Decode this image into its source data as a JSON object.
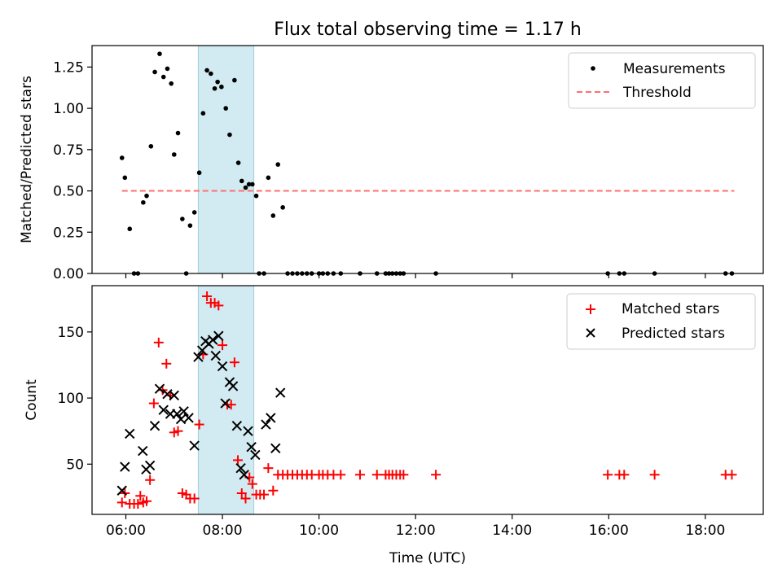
{
  "title": "Flux total observing time = 1.17 h",
  "colors": {
    "measurement": "#000000",
    "threshold": "#ff6f6f",
    "matched": "#ff0000",
    "predicted": "#000000",
    "highlight": "#add8e6"
  },
  "chart_data": [
    {
      "type": "scatter",
      "ylabel": "Matched/Predicted stars",
      "ylim": [
        0,
        1.38
      ],
      "yticks": [
        0.0,
        0.25,
        0.5,
        0.75,
        1.0,
        1.25
      ],
      "ytick_labels": [
        "0.00",
        "0.25",
        "0.50",
        "0.75",
        "1.00",
        "1.25"
      ],
      "xlim": [
        5.3,
        19.2
      ],
      "highlight_span": [
        7.5,
        8.65
      ],
      "legend": {
        "placement": "top-right",
        "entries": [
          "Measurements",
          "Threshold"
        ]
      },
      "threshold": {
        "name": "Threshold",
        "value": 0.5,
        "x_range": [
          5.92,
          18.6
        ]
      },
      "series": [
        {
          "name": "Measurements",
          "points": [
            [
              5.92,
              0.7
            ],
            [
              5.98,
              0.58
            ],
            [
              6.08,
              0.27
            ],
            [
              6.17,
              0.0
            ],
            [
              6.25,
              0.0
            ],
            [
              6.36,
              0.43
            ],
            [
              6.43,
              0.47
            ],
            [
              6.52,
              0.77
            ],
            [
              6.6,
              1.22
            ],
            [
              6.7,
              1.33
            ],
            [
              6.78,
              1.19
            ],
            [
              6.86,
              1.24
            ],
            [
              6.94,
              1.15
            ],
            [
              7.0,
              0.72
            ],
            [
              7.08,
              0.85
            ],
            [
              7.17,
              0.33
            ],
            [
              7.25,
              0.0
            ],
            [
              7.33,
              0.29
            ],
            [
              7.42,
              0.37
            ],
            [
              7.52,
              0.61
            ],
            [
              7.6,
              0.97
            ],
            [
              7.68,
              1.23
            ],
            [
              7.76,
              1.21
            ],
            [
              7.84,
              1.12
            ],
            [
              7.9,
              1.16
            ],
            [
              7.98,
              1.13
            ],
            [
              8.07,
              1.0
            ],
            [
              8.15,
              0.84
            ],
            [
              8.25,
              1.17
            ],
            [
              8.33,
              0.67
            ],
            [
              8.4,
              0.56
            ],
            [
              8.48,
              0.52
            ],
            [
              8.55,
              0.54
            ],
            [
              8.62,
              0.54
            ],
            [
              8.7,
              0.47
            ],
            [
              8.76,
              0.0
            ],
            [
              8.86,
              0.0
            ],
            [
              8.95,
              0.58
            ],
            [
              9.05,
              0.35
            ],
            [
              9.15,
              0.66
            ],
            [
              9.25,
              0.4
            ],
            [
              9.35,
              0.0
            ],
            [
              9.45,
              0.0
            ],
            [
              9.55,
              0.0
            ],
            [
              9.65,
              0.0
            ],
            [
              9.75,
              0.0
            ],
            [
              9.85,
              0.0
            ],
            [
              10.0,
              0.0
            ],
            [
              10.08,
              0.0
            ],
            [
              10.18,
              0.0
            ],
            [
              10.3,
              0.0
            ],
            [
              10.45,
              0.0
            ],
            [
              10.85,
              0.0
            ],
            [
              11.2,
              0.0
            ],
            [
              11.38,
              0.0
            ],
            [
              11.45,
              0.0
            ],
            [
              11.52,
              0.0
            ],
            [
              11.6,
              0.0
            ],
            [
              11.68,
              0.0
            ],
            [
              11.75,
              0.0
            ],
            [
              12.42,
              0.0
            ],
            [
              15.98,
              0.0
            ],
            [
              16.22,
              0.0
            ],
            [
              16.32,
              0.0
            ],
            [
              16.95,
              0.0
            ],
            [
              18.42,
              0.0
            ],
            [
              18.55,
              0.0
            ]
          ]
        }
      ]
    },
    {
      "type": "scatter",
      "ylabel": "Count",
      "xlabel": "Time (UTC)",
      "ylim": [
        12,
        185
      ],
      "yticks": [
        50,
        100,
        150
      ],
      "ytick_labels": [
        "50",
        "100",
        "150"
      ],
      "xlim": [
        5.3,
        19.2
      ],
      "xticks": [
        6,
        8,
        10,
        12,
        14,
        16,
        18
      ],
      "xtick_labels": [
        "06:00",
        "08:00",
        "10:00",
        "12:00",
        "14:00",
        "16:00",
        "18:00"
      ],
      "highlight_span": [
        7.5,
        8.65
      ],
      "legend": {
        "placement": "top-right",
        "entries": [
          "Matched stars",
          "Predicted stars"
        ]
      },
      "series": [
        {
          "name": "Matched stars",
          "marker": "plus",
          "points": [
            [
              5.92,
              21
            ],
            [
              5.98,
              28
            ],
            [
              6.08,
              20
            ],
            [
              6.17,
              20
            ],
            [
              6.25,
              20
            ],
            [
              6.3,
              26
            ],
            [
              6.36,
              21
            ],
            [
              6.43,
              22
            ],
            [
              6.5,
              38
            ],
            [
              6.58,
              96
            ],
            [
              6.68,
              142
            ],
            [
              6.76,
              106
            ],
            [
              6.84,
              126
            ],
            [
              6.92,
              102
            ],
            [
              7.0,
              74
            ],
            [
              7.08,
              75
            ],
            [
              7.17,
              28
            ],
            [
              7.25,
              27
            ],
            [
              7.33,
              24
            ],
            [
              7.42,
              24
            ],
            [
              7.52,
              80
            ],
            [
              7.6,
              133
            ],
            [
              7.68,
              177
            ],
            [
              7.76,
              172
            ],
            [
              7.84,
              172
            ],
            [
              7.92,
              170
            ],
            [
              8.0,
              140
            ],
            [
              8.1,
              95
            ],
            [
              8.18,
              95
            ],
            [
              8.25,
              127
            ],
            [
              8.32,
              53
            ],
            [
              8.4,
              28
            ],
            [
              8.48,
              24
            ],
            [
              8.56,
              40
            ],
            [
              8.62,
              35
            ],
            [
              8.7,
              27
            ],
            [
              8.78,
              27
            ],
            [
              8.86,
              27
            ],
            [
              8.95,
              47
            ],
            [
              9.05,
              30
            ],
            [
              9.15,
              42
            ],
            [
              9.25,
              42
            ],
            [
              9.35,
              42
            ],
            [
              9.45,
              42
            ],
            [
              9.55,
              42
            ],
            [
              9.65,
              42
            ],
            [
              9.75,
              42
            ],
            [
              9.85,
              42
            ],
            [
              10.0,
              42
            ],
            [
              10.08,
              42
            ],
            [
              10.18,
              42
            ],
            [
              10.3,
              42
            ],
            [
              10.45,
              42
            ],
            [
              10.85,
              42
            ],
            [
              11.2,
              42
            ],
            [
              11.38,
              42
            ],
            [
              11.45,
              42
            ],
            [
              11.52,
              42
            ],
            [
              11.6,
              42
            ],
            [
              11.68,
              42
            ],
            [
              11.75,
              42
            ],
            [
              12.42,
              42
            ],
            [
              15.98,
              42
            ],
            [
              16.22,
              42
            ],
            [
              16.32,
              42
            ],
            [
              16.95,
              42
            ],
            [
              18.42,
              42
            ],
            [
              18.55,
              42
            ]
          ]
        },
        {
          "name": "Predicted stars",
          "marker": "x",
          "points": [
            [
              5.92,
              30
            ],
            [
              5.98,
              48
            ],
            [
              6.08,
              73
            ],
            [
              6.35,
              60
            ],
            [
              6.42,
              46
            ],
            [
              6.5,
              49
            ],
            [
              6.6,
              79
            ],
            [
              6.7,
              107
            ],
            [
              6.78,
              91
            ],
            [
              6.86,
              103
            ],
            [
              6.92,
              88
            ],
            [
              7.0,
              102
            ],
            [
              7.06,
              88
            ],
            [
              7.14,
              84
            ],
            [
              7.2,
              90
            ],
            [
              7.3,
              85
            ],
            [
              7.42,
              64
            ],
            [
              7.5,
              131
            ],
            [
              7.58,
              136
            ],
            [
              7.65,
              143
            ],
            [
              7.72,
              141
            ],
            [
              7.8,
              144
            ],
            [
              7.86,
              132
            ],
            [
              7.92,
              147
            ],
            [
              8.0,
              124
            ],
            [
              8.06,
              96
            ],
            [
              8.15,
              112
            ],
            [
              8.22,
              109
            ],
            [
              8.3,
              79
            ],
            [
              8.38,
              47
            ],
            [
              8.45,
              42
            ],
            [
              8.53,
              75
            ],
            [
              8.6,
              63
            ],
            [
              8.68,
              57
            ],
            [
              8.9,
              80
            ],
            [
              9.0,
              85
            ],
            [
              9.1,
              62
            ],
            [
              9.2,
              104
            ]
          ]
        }
      ]
    }
  ]
}
